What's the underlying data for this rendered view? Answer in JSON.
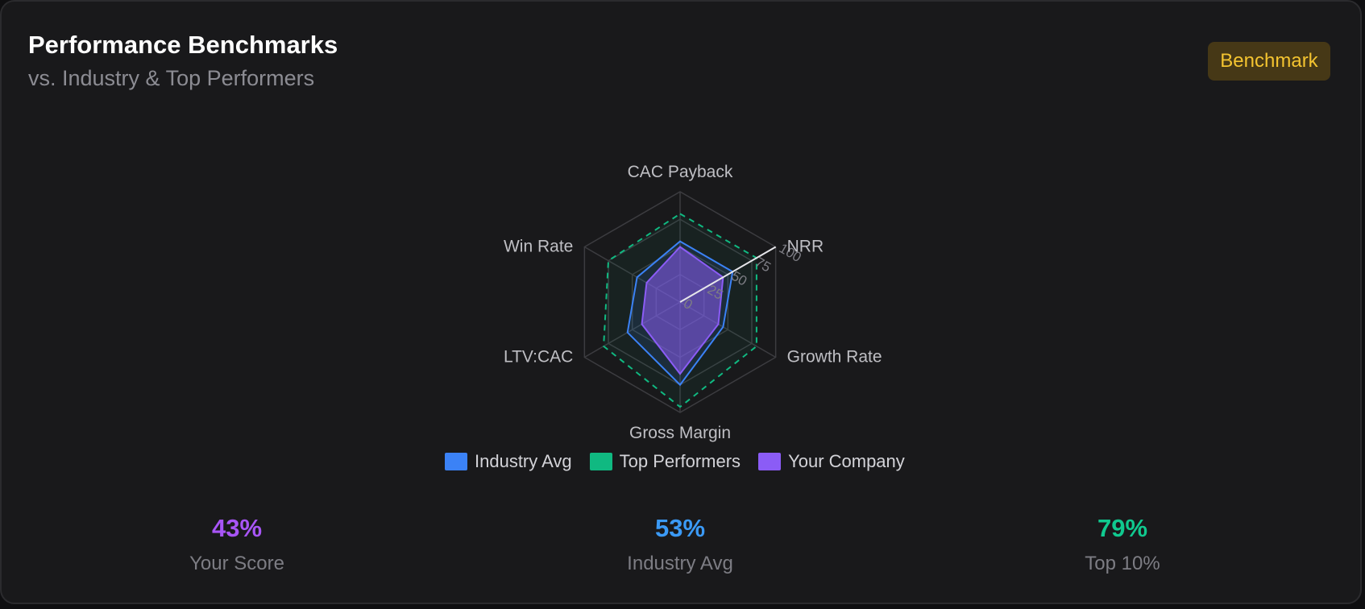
{
  "header": {
    "title": "Performance Benchmarks",
    "subtitle": "vs. Industry & Top Performers",
    "badge": "Benchmark"
  },
  "chart_data": {
    "type": "radar",
    "axes": [
      "CAC Payback",
      "NRR",
      "Growth Rate",
      "Gross Margin",
      "LTV:CAC",
      "Win Rate"
    ],
    "ticks": [
      "0",
      "25",
      "50",
      "75",
      "100"
    ],
    "range": [
      0,
      100
    ],
    "series": [
      {
        "name": "Industry Avg",
        "color": "#3b82f6",
        "values": [
          55,
          55,
          45,
          75,
          55,
          45
        ]
      },
      {
        "name": "Top Performers",
        "color": "#10b981",
        "values": [
          80,
          80,
          80,
          95,
          80,
          75
        ]
      },
      {
        "name": "Your Company",
        "color": "#8b5cf6",
        "values": [
          50,
          45,
          40,
          65,
          40,
          35
        ]
      }
    ]
  },
  "stats": [
    {
      "value": "43%",
      "label": "Your Score",
      "color": "#a855f7"
    },
    {
      "value": "53%",
      "label": "Industry Avg",
      "color": "#3b9af6"
    },
    {
      "value": "79%",
      "label": "Top 10%",
      "color": "#10c98f"
    }
  ]
}
